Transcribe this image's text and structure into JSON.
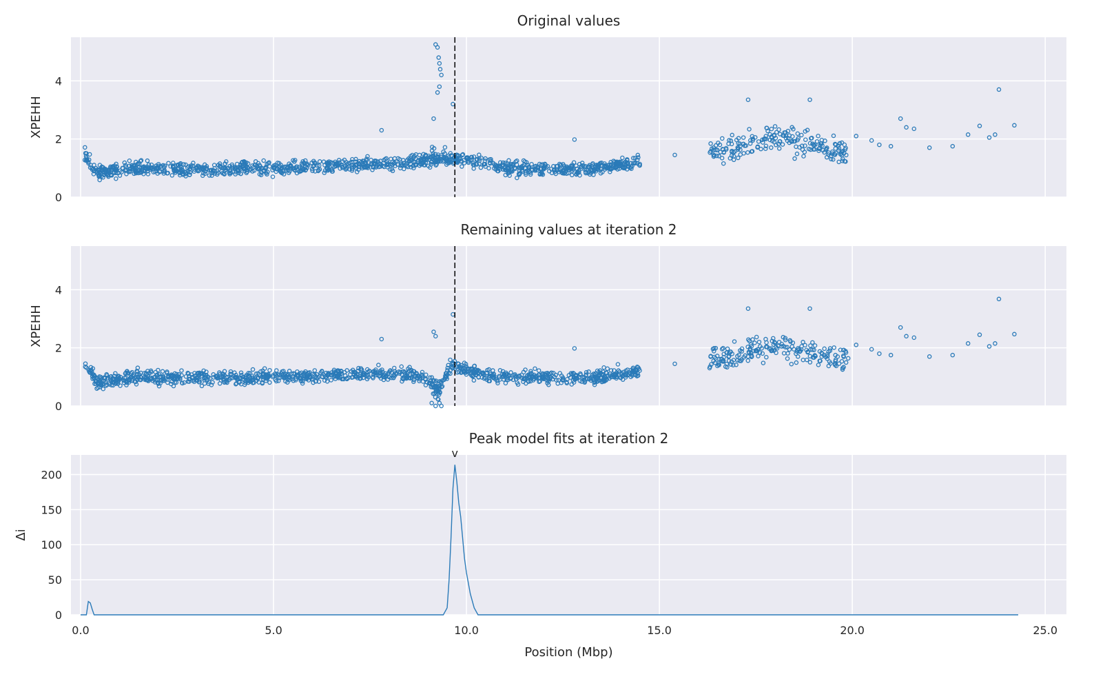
{
  "chart_data": [
    {
      "type": "scatter",
      "title": "Original values",
      "ylabel": "XPEHH",
      "xlabel": "",
      "xlim": [
        -0.25,
        25.55
      ],
      "ylim": [
        0,
        5.5
      ],
      "yticks": [
        "0",
        "2",
        "4"
      ],
      "xticks": [
        0,
        5,
        10,
        15,
        20,
        25
      ],
      "grid": true,
      "marker": "open circle",
      "vline_x": 9.7,
      "vline_style": "dashed black",
      "notable_points": [
        {
          "x": 9.2,
          "y": 5.25
        },
        {
          "x": 9.25,
          "y": 5.15
        },
        {
          "x": 9.28,
          "y": 4.8
        },
        {
          "x": 9.3,
          "y": 4.6
        },
        {
          "x": 9.32,
          "y": 4.4
        },
        {
          "x": 9.35,
          "y": 4.2
        },
        {
          "x": 9.3,
          "y": 3.8
        },
        {
          "x": 9.25,
          "y": 3.6
        },
        {
          "x": 9.15,
          "y": 2.7
        },
        {
          "x": 9.65,
          "y": 3.2
        },
        {
          "x": 7.8,
          "y": 2.3
        },
        {
          "x": 12.8,
          "y": 1.98
        },
        {
          "x": 17.3,
          "y": 3.35
        },
        {
          "x": 18.9,
          "y": 3.35
        },
        {
          "x": 23.8,
          "y": 3.7
        },
        {
          "x": 24.2,
          "y": 2.47
        },
        {
          "x": 15.4,
          "y": 1.45
        },
        {
          "x": 22.0,
          "y": 1.7
        }
      ],
      "bulk_trend": [
        {
          "x": 0.1,
          "y": 1.55
        },
        {
          "x": 0.4,
          "y": 0.8
        },
        {
          "x": 1.5,
          "y": 1.0
        },
        {
          "x": 3.0,
          "y": 0.95
        },
        {
          "x": 5.0,
          "y": 1.0
        },
        {
          "x": 7.0,
          "y": 1.1
        },
        {
          "x": 8.5,
          "y": 1.15
        },
        {
          "x": 9.0,
          "y": 1.3
        },
        {
          "x": 9.5,
          "y": 1.3
        },
        {
          "x": 10.0,
          "y": 1.3
        },
        {
          "x": 11.0,
          "y": 1.0
        },
        {
          "x": 13.0,
          "y": 0.95
        },
        {
          "x": 14.5,
          "y": 1.2
        },
        {
          "x": 16.5,
          "y": 1.6
        },
        {
          "x": 18.0,
          "y": 2.1
        },
        {
          "x": 19.8,
          "y": 1.6
        }
      ]
    },
    {
      "type": "scatter",
      "title": "Remaining values at iteration 2",
      "ylabel": "XPEHH",
      "xlabel": "",
      "xlim": [
        -0.25,
        25.55
      ],
      "ylim": [
        0,
        5.5
      ],
      "yticks": [
        "0",
        "2",
        "4"
      ],
      "xticks": [
        0,
        5,
        10,
        15,
        20,
        25
      ],
      "grid": true,
      "marker": "open circle",
      "vline_x": 9.7,
      "vline_style": "dashed black",
      "notable_points": [
        {
          "x": 9.15,
          "y": 2.55
        },
        {
          "x": 9.2,
          "y": 2.4
        },
        {
          "x": 9.65,
          "y": 3.15
        },
        {
          "x": 9.1,
          "y": 0.1
        },
        {
          "x": 9.2,
          "y": 0.0
        },
        {
          "x": 9.3,
          "y": 0.1
        },
        {
          "x": 9.35,
          "y": 0.0
        },
        {
          "x": 7.8,
          "y": 2.3
        },
        {
          "x": 12.8,
          "y": 1.98
        },
        {
          "x": 17.3,
          "y": 3.35
        },
        {
          "x": 18.9,
          "y": 3.35
        },
        {
          "x": 23.8,
          "y": 3.68
        },
        {
          "x": 24.2,
          "y": 2.47
        },
        {
          "x": 15.4,
          "y": 1.45
        },
        {
          "x": 22.0,
          "y": 1.7
        }
      ],
      "bulk_trend": [
        {
          "x": 0.1,
          "y": 1.55
        },
        {
          "x": 0.4,
          "y": 0.8
        },
        {
          "x": 1.5,
          "y": 1.0
        },
        {
          "x": 3.0,
          "y": 0.95
        },
        {
          "x": 5.0,
          "y": 1.0
        },
        {
          "x": 7.0,
          "y": 1.1
        },
        {
          "x": 8.5,
          "y": 1.1
        },
        {
          "x": 9.0,
          "y": 0.9
        },
        {
          "x": 9.3,
          "y": 0.5
        },
        {
          "x": 9.6,
          "y": 1.5
        },
        {
          "x": 10.0,
          "y": 1.2
        },
        {
          "x": 11.0,
          "y": 1.0
        },
        {
          "x": 13.0,
          "y": 0.95
        },
        {
          "x": 14.5,
          "y": 1.2
        },
        {
          "x": 16.5,
          "y": 1.6
        },
        {
          "x": 18.0,
          "y": 2.1
        },
        {
          "x": 19.8,
          "y": 1.6
        }
      ]
    },
    {
      "type": "line",
      "title": "Peak model fits at iteration 2",
      "ylabel": "Δi",
      "xlabel": "Position (Mbp)",
      "xlim": [
        -0.25,
        25.55
      ],
      "ylim": [
        0,
        228
      ],
      "yticks": [
        "0",
        "50",
        "100",
        "150",
        "200"
      ],
      "xticks": [
        "0.0",
        "5.0",
        "10.0",
        "15.0",
        "20.0",
        "25.0"
      ],
      "grid": true,
      "peak_marker": {
        "label": "v",
        "x": 9.7
      },
      "series": [
        {
          "values": [
            {
              "x": 0.0,
              "y": 0
            },
            {
              "x": 0.15,
              "y": 0
            },
            {
              "x": 0.2,
              "y": 19
            },
            {
              "x": 0.25,
              "y": 17
            },
            {
              "x": 0.3,
              "y": 8
            },
            {
              "x": 0.35,
              "y": 0
            },
            {
              "x": 9.1,
              "y": 0
            },
            {
              "x": 9.4,
              "y": 0
            },
            {
              "x": 9.5,
              "y": 10
            },
            {
              "x": 9.55,
              "y": 50
            },
            {
              "x": 9.6,
              "y": 110
            },
            {
              "x": 9.65,
              "y": 180
            },
            {
              "x": 9.7,
              "y": 214
            },
            {
              "x": 9.75,
              "y": 190
            },
            {
              "x": 9.8,
              "y": 160
            },
            {
              "x": 9.85,
              "y": 140
            },
            {
              "x": 9.9,
              "y": 110
            },
            {
              "x": 9.95,
              "y": 80
            },
            {
              "x": 10.0,
              "y": 60
            },
            {
              "x": 10.1,
              "y": 30
            },
            {
              "x": 10.2,
              "y": 10
            },
            {
              "x": 10.3,
              "y": 0
            },
            {
              "x": 14.2,
              "y": 0
            },
            {
              "x": 19.5,
              "y": 0
            },
            {
              "x": 23.5,
              "y": 0
            },
            {
              "x": 24.3,
              "y": 0
            }
          ]
        }
      ]
    }
  ],
  "colors": {
    "point": "#2a7ab8",
    "line": "#2a7ab8",
    "panel_bg": "#eaeaf2",
    "grid": "#ffffff",
    "vline": "#000000"
  }
}
